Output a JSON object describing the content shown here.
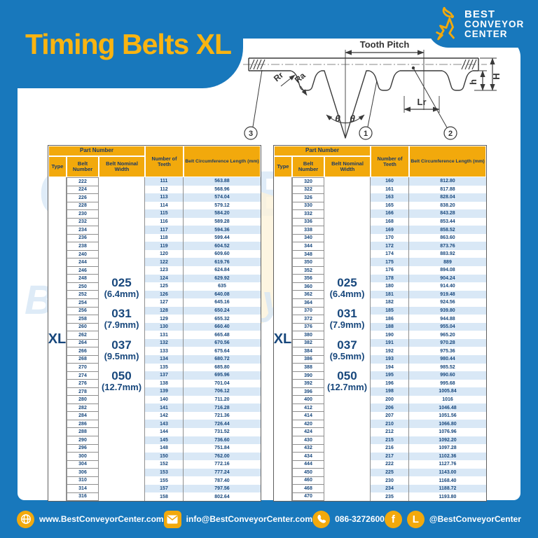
{
  "header": {
    "title": "Timing Belts XL",
    "brand": {
      "line1": "BEST",
      "line2": "CONVEYOR",
      "line3": "CENTER"
    }
  },
  "diagram": {
    "tooth_pitch": "Tooth Pitch",
    "rr": "Rr",
    "ra": "Ra",
    "theta_left": "θ",
    "theta_right": "θ",
    "lr": "Lr",
    "height_total": "H",
    "height_tooth": "h",
    "callout_1": "1",
    "callout_2": "2",
    "callout_3": "3"
  },
  "table": {
    "header": {
      "part_number": "Part Number",
      "type": "Type",
      "belt_number": "Belt Number",
      "belt_nominal_width": "Belt Nominal Width",
      "number_of_teeth": "Number of Teeth",
      "belt_circumference_length": "Belt Circumference Length (mm)"
    },
    "type_value": "XL",
    "nominal_widths": [
      {
        "code": "025",
        "size": "(6.4mm)"
      },
      {
        "code": "031",
        "size": "(7.9mm)"
      },
      {
        "code": "037",
        "size": "(9.5mm)"
      },
      {
        "code": "050",
        "size": "(12.7mm)"
      }
    ]
  },
  "left_table": {
    "rows": [
      [
        "222",
        "111",
        "563.88"
      ],
      [
        "224",
        "112",
        "568.96"
      ],
      [
        "226",
        "113",
        "574.04"
      ],
      [
        "228",
        "114",
        "579.12"
      ],
      [
        "230",
        "115",
        "584.20"
      ],
      [
        "232",
        "116",
        "589.28"
      ],
      [
        "234",
        "117",
        "594.36"
      ],
      [
        "236",
        "118",
        "599.44"
      ],
      [
        "238",
        "119",
        "604.52"
      ],
      [
        "240",
        "120",
        "609.60"
      ],
      [
        "244",
        "122",
        "619.76"
      ],
      [
        "246",
        "123",
        "624.84"
      ],
      [
        "248",
        "124",
        "629.92"
      ],
      [
        "250",
        "125",
        "635"
      ],
      [
        "252",
        "126",
        "640.08"
      ],
      [
        "254",
        "127",
        "645.16"
      ],
      [
        "256",
        "128",
        "650.24"
      ],
      [
        "258",
        "129",
        "655.32"
      ],
      [
        "260",
        "130",
        "660.40"
      ],
      [
        "262",
        "131",
        "665.48"
      ],
      [
        "264",
        "132",
        "670.56"
      ],
      [
        "266",
        "133",
        "675.64"
      ],
      [
        "268",
        "134",
        "680.72"
      ],
      [
        "270",
        "135",
        "685.80"
      ],
      [
        "274",
        "137",
        "695.96"
      ],
      [
        "276",
        "138",
        "701.04"
      ],
      [
        "278",
        "139",
        "706.12"
      ],
      [
        "280",
        "140",
        "711.20"
      ],
      [
        "282",
        "141",
        "716.28"
      ],
      [
        "284",
        "142",
        "721.36"
      ],
      [
        "286",
        "143",
        "726.44"
      ],
      [
        "288",
        "144",
        "731.52"
      ],
      [
        "290",
        "145",
        "736.60"
      ],
      [
        "296",
        "148",
        "751.84"
      ],
      [
        "300",
        "150",
        "762.00"
      ],
      [
        "304",
        "152",
        "772.16"
      ],
      [
        "306",
        "153",
        "777.24"
      ],
      [
        "310",
        "155",
        "787.40"
      ],
      [
        "314",
        "157",
        "797.56"
      ],
      [
        "316",
        "158",
        "802.64"
      ]
    ]
  },
  "right_table": {
    "rows": [
      [
        "320",
        "160",
        "812.80"
      ],
      [
        "322",
        "161",
        "817.88"
      ],
      [
        "326",
        "163",
        "828.04"
      ],
      [
        "330",
        "165",
        "838.20"
      ],
      [
        "332",
        "166",
        "843.28"
      ],
      [
        "336",
        "168",
        "853.44"
      ],
      [
        "338",
        "169",
        "858.52"
      ],
      [
        "340",
        "170",
        "863.60"
      ],
      [
        "344",
        "172",
        "873.76"
      ],
      [
        "348",
        "174",
        "883.92"
      ],
      [
        "350",
        "175",
        "889"
      ],
      [
        "352",
        "176",
        "894.08"
      ],
      [
        "356",
        "178",
        "904.24"
      ],
      [
        "360",
        "180",
        "914.40"
      ],
      [
        "362",
        "181",
        "919.48"
      ],
      [
        "364",
        "182",
        "924.56"
      ],
      [
        "370",
        "185",
        "939.80"
      ],
      [
        "372",
        "186",
        "944.88"
      ],
      [
        "376",
        "188",
        "955.04"
      ],
      [
        "380",
        "190",
        "965.20"
      ],
      [
        "382",
        "191",
        "970.28"
      ],
      [
        "384",
        "192",
        "975.36"
      ],
      [
        "386",
        "193",
        "980.44"
      ],
      [
        "388",
        "194",
        "985.52"
      ],
      [
        "390",
        "195",
        "990.60"
      ],
      [
        "392",
        "196",
        "995.68"
      ],
      [
        "396",
        "198",
        "1005.84"
      ],
      [
        "400",
        "200",
        "1016"
      ],
      [
        "412",
        "206",
        "1046.48"
      ],
      [
        "414",
        "207",
        "1051.56"
      ],
      [
        "420",
        "210",
        "1066.80"
      ],
      [
        "424",
        "212",
        "1076.96"
      ],
      [
        "430",
        "215",
        "1092.20"
      ],
      [
        "432",
        "216",
        "1097.28"
      ],
      [
        "434",
        "217",
        "1102.36"
      ],
      [
        "444",
        "222",
        "1127.76"
      ],
      [
        "450",
        "225",
        "1143.00"
      ],
      [
        "460",
        "230",
        "1168.40"
      ],
      [
        "468",
        "234",
        "1188.72"
      ],
      [
        "470",
        "235",
        "1193.80"
      ]
    ]
  },
  "footer": {
    "website": "www.BestConveyorCenter.com",
    "email": "info@BestConveyorCenter.com",
    "phone": "086-3272600",
    "social": "@BestConveyorCenter",
    "facebook_letter": "f",
    "line_letter": "L"
  },
  "colors": {
    "blue": "#1878BC",
    "yellow": "#F2A90C",
    "title_yellow": "#F9B411",
    "navy_text": "#17477C",
    "stripe": "#D9E8F6"
  },
  "watermark": {
    "text1": "CONVEYOR",
    "text2": "BestConveyorCenter"
  }
}
